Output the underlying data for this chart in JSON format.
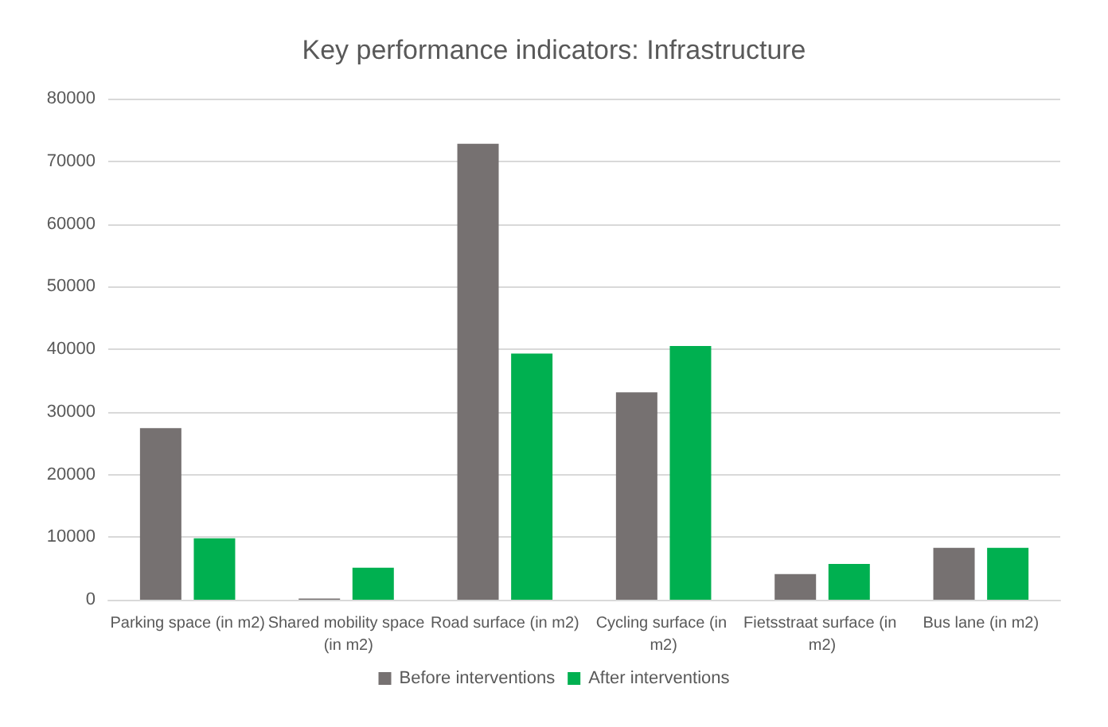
{
  "chart_data": {
    "type": "bar",
    "title": "Key performance indicators: Infrastructure",
    "categories": [
      "Parking space (in m2)",
      "Shared mobility space (in m2)",
      "Road surface (in m2)",
      "Cycling surface (in m2)",
      "Fietsstraat surface (in m2)",
      "Bus lane (in m2)"
    ],
    "series": [
      {
        "name": "Before interventions",
        "color": "#767171",
        "values": [
          27400,
          200,
          72800,
          33100,
          4100,
          8300
        ]
      },
      {
        "name": "After interventions",
        "color": "#00b050",
        "values": [
          9800,
          5100,
          39300,
          40500,
          5700,
          8300
        ]
      }
    ],
    "ylim": [
      0,
      80000
    ],
    "yticks": [
      0,
      10000,
      20000,
      30000,
      40000,
      50000,
      60000,
      70000,
      80000
    ],
    "grid": "y",
    "legend": "bottom"
  }
}
